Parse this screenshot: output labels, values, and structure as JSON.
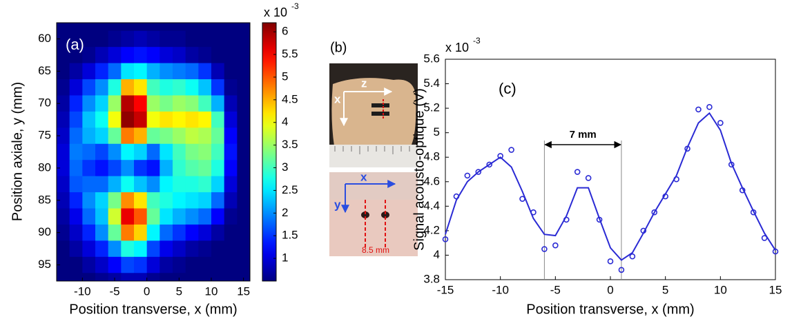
{
  "chart_data": [
    {
      "type": "heatmap",
      "panel": "(a)",
      "x": [
        -13,
        -11,
        -9,
        -7,
        -5,
        -3,
        -1,
        1,
        3,
        5,
        7,
        9,
        11,
        13,
        15
      ],
      "y": [
        60,
        62.5,
        65,
        67.5,
        70,
        72.5,
        75,
        77.5,
        80,
        82.5,
        85,
        87.5,
        90,
        92.5,
        95,
        97.5
      ],
      "z": [
        [
          0.5,
          0.5,
          0.5,
          0.5,
          0.6,
          0.7,
          0.8,
          0.7,
          0.6,
          0.6,
          0.5,
          0.5,
          0.5,
          0.5,
          0.5
        ],
        [
          0.5,
          0.5,
          0.6,
          0.8,
          1.0,
          1.2,
          1.3,
          1.2,
          1.0,
          0.9,
          0.7,
          0.6,
          0.5,
          0.5,
          0.5
        ],
        [
          0.5,
          0.7,
          1.0,
          1.4,
          1.8,
          2.5,
          2.6,
          2.2,
          2.0,
          1.9,
          1.8,
          1.5,
          0.8,
          0.5,
          0.5
        ],
        [
          0.6,
          1.0,
          1.6,
          2.0,
          2.8,
          4.5,
          4.2,
          3.0,
          2.8,
          2.9,
          2.7,
          2.3,
          1.5,
          0.6,
          0.5
        ],
        [
          0.7,
          1.4,
          2.0,
          2.4,
          3.5,
          5.9,
          5.5,
          3.5,
          3.3,
          3.5,
          3.4,
          3.0,
          2.2,
          0.8,
          0.5
        ],
        [
          0.8,
          1.6,
          2.3,
          2.7,
          4.0,
          6.1,
          5.8,
          4.0,
          4.2,
          4.1,
          4.2,
          4.1,
          3.0,
          1.0,
          0.5
        ],
        [
          0.9,
          1.8,
          2.2,
          2.4,
          3.2,
          4.8,
          4.5,
          3.2,
          3.3,
          3.5,
          3.7,
          3.6,
          3.2,
          1.2,
          0.5
        ],
        [
          1.0,
          1.9,
          1.8,
          1.6,
          2.0,
          2.6,
          2.4,
          1.8,
          2.5,
          3.0,
          3.3,
          3.4,
          3.0,
          1.3,
          0.5
        ],
        [
          1.0,
          1.8,
          1.5,
          1.3,
          1.6,
          2.0,
          1.5,
          1.3,
          2.2,
          2.9,
          3.1,
          3.2,
          2.8,
          1.2,
          0.5
        ],
        [
          0.9,
          1.7,
          1.8,
          1.8,
          2.2,
          2.7,
          2.3,
          2.0,
          2.6,
          2.8,
          2.8,
          2.9,
          2.4,
          1.0,
          0.5
        ],
        [
          0.8,
          1.4,
          2.0,
          2.4,
          3.3,
          4.7,
          4.2,
          3.0,
          2.8,
          2.6,
          2.5,
          2.4,
          1.8,
          0.8,
          0.5
        ],
        [
          0.7,
          1.1,
          1.8,
          2.3,
          3.8,
          5.6,
          5.0,
          3.2,
          2.5,
          2.2,
          2.0,
          1.8,
          1.2,
          0.6,
          0.5
        ],
        [
          0.6,
          0.9,
          1.4,
          2.0,
          3.2,
          4.8,
          4.3,
          2.6,
          1.8,
          1.5,
          1.2,
          1.0,
          0.7,
          0.5,
          0.5
        ],
        [
          0.5,
          0.7,
          1.0,
          1.4,
          2.0,
          2.8,
          2.6,
          1.6,
          1.1,
          0.9,
          0.7,
          0.6,
          0.5,
          0.5,
          0.5
        ],
        [
          0.5,
          0.5,
          0.7,
          0.9,
          1.2,
          1.6,
          1.5,
          1.0,
          0.7,
          0.6,
          0.5,
          0.5,
          0.5,
          0.5,
          0.5
        ],
        [
          0.5,
          0.5,
          0.5,
          0.6,
          0.7,
          0.8,
          0.8,
          0.6,
          0.5,
          0.5,
          0.5,
          0.5,
          0.5,
          0.5,
          0.5
        ]
      ],
      "xlim": [
        -14,
        16
      ],
      "xticks": [
        -10,
        -5,
        0,
        5,
        10,
        15
      ],
      "ylim": [
        57.5,
        97.5
      ],
      "y_reversed": true,
      "yticks": [
        60,
        65,
        70,
        75,
        80,
        85,
        90,
        95
      ],
      "xlabel": "Position transverse, x (mm)",
      "ylabel": "Position axiale, y (mm)",
      "colormap": "jet",
      "clim": [
        0.5,
        6.2
      ],
      "cticks": [
        1,
        1.5,
        2,
        2.5,
        3,
        3.5,
        4,
        4.5,
        5,
        5.5,
        6
      ],
      "colorbar_label": "x 10",
      "colorbar_exponent": "-3"
    },
    {
      "type": "line",
      "panel": "(c)",
      "x": [
        -15,
        -14,
        -13,
        -12,
        -11,
        -10,
        -9,
        -8,
        -7,
        -6,
        -5,
        -4,
        -3,
        -2,
        -1,
        0,
        1,
        2,
        3,
        4,
        5,
        6,
        7,
        8,
        9,
        10,
        11,
        12,
        13,
        14,
        15
      ],
      "series": [
        {
          "style": "line",
          "color": "#2a2ad4",
          "values": [
            4.17,
            4.45,
            4.6,
            4.68,
            4.74,
            4.8,
            4.72,
            4.52,
            4.3,
            4.17,
            4.16,
            4.32,
            4.55,
            4.55,
            4.3,
            4.06,
            3.96,
            4.02,
            4.18,
            4.35,
            4.5,
            4.65,
            4.88,
            5.08,
            5.16,
            5.02,
            4.75,
            4.55,
            4.36,
            4.18,
            4.04
          ]
        },
        {
          "style": "markers",
          "color": "#2a2ad4",
          "values": [
            4.13,
            4.48,
            4.65,
            4.68,
            4.74,
            4.81,
            4.86,
            4.46,
            4.35,
            4.05,
            4.08,
            4.29,
            4.68,
            4.63,
            4.29,
            3.95,
            3.88,
            3.99,
            4.2,
            4.35,
            4.48,
            4.62,
            4.87,
            5.19,
            5.21,
            5.08,
            4.74,
            4.53,
            4.35,
            4.14,
            4.03
          ]
        }
      ],
      "xlim": [
        -15,
        15
      ],
      "xticks": [
        -15,
        -10,
        -5,
        0,
        5,
        10,
        15
      ],
      "ylim": [
        3.8,
        5.6
      ],
      "yticks": [
        3.8,
        4,
        4.2,
        4.4,
        4.6,
        4.8,
        5,
        5.2,
        5.4,
        5.6
      ],
      "xlabel": "Position transverse, x (mm)",
      "ylabel": "Signal acousto-optique (V)",
      "y_multiplier_label": "x 10",
      "y_multiplier_exponent": "-3",
      "span": [
        -6,
        1
      ],
      "span_label": "7 mm"
    }
  ],
  "panel_b": {
    "label": "(b)",
    "top_photo": {
      "axis_labels": [
        "z",
        "x"
      ]
    },
    "bottom_photo": {
      "axis_labels": [
        "x",
        "y"
      ],
      "scale_label": "8.5 mm"
    }
  }
}
